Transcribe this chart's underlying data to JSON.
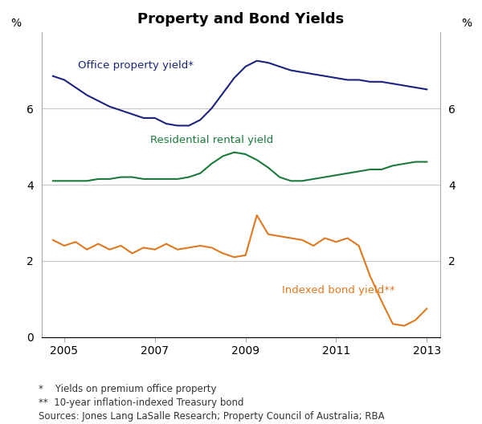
{
  "title": "Property and Bond Yields",
  "ylabel_left": "%",
  "ylabel_right": "%",
  "ylim": [
    0,
    8
  ],
  "yticks_left": [
    0,
    2,
    4,
    6
  ],
  "yticks_right": [
    2,
    4,
    6
  ],
  "xlim": [
    2004.5,
    2013.3
  ],
  "xticks": [
    2005,
    2007,
    2009,
    2011,
    2013
  ],
  "background_color": "#ffffff",
  "grid_color": "#c8c8c8",
  "grid_yticks": [
    0,
    2,
    4,
    6,
    8
  ],
  "footnote1": "*    Yields on premium office property",
  "footnote2": "**  10-year inflation-indexed Treasury bond",
  "footnote3": "Sources: Jones Lang LaSalle Research; Property Council of Australia; RBA",
  "office_label": "Office property yield*",
  "rental_label": "Residential rental yield",
  "bond_label": "Indexed bond yield**",
  "office_color": "#1a237e",
  "rental_color": "#1a7a3c",
  "bond_color": "#e07820",
  "office_x": [
    2004.75,
    2005.0,
    2005.25,
    2005.5,
    2005.75,
    2006.0,
    2006.25,
    2006.5,
    2006.75,
    2007.0,
    2007.25,
    2007.5,
    2007.75,
    2008.0,
    2008.25,
    2008.5,
    2008.75,
    2009.0,
    2009.25,
    2009.5,
    2009.75,
    2010.0,
    2010.25,
    2010.5,
    2010.75,
    2011.0,
    2011.25,
    2011.5,
    2011.75,
    2012.0,
    2012.25,
    2012.5,
    2012.75,
    2013.0
  ],
  "office_y": [
    6.85,
    6.75,
    6.55,
    6.35,
    6.2,
    6.05,
    5.95,
    5.85,
    5.75,
    5.75,
    5.6,
    5.55,
    5.55,
    5.7,
    6.0,
    6.4,
    6.8,
    7.1,
    7.25,
    7.2,
    7.1,
    7.0,
    6.95,
    6.9,
    6.85,
    6.8,
    6.75,
    6.75,
    6.7,
    6.7,
    6.65,
    6.6,
    6.55,
    6.5
  ],
  "rental_x": [
    2004.75,
    2005.0,
    2005.25,
    2005.5,
    2005.75,
    2006.0,
    2006.25,
    2006.5,
    2006.75,
    2007.0,
    2007.25,
    2007.5,
    2007.75,
    2008.0,
    2008.25,
    2008.5,
    2008.75,
    2009.0,
    2009.25,
    2009.5,
    2009.75,
    2010.0,
    2010.25,
    2010.5,
    2010.75,
    2011.0,
    2011.25,
    2011.5,
    2011.75,
    2012.0,
    2012.25,
    2012.5,
    2012.75,
    2013.0
  ],
  "rental_y": [
    4.1,
    4.1,
    4.1,
    4.1,
    4.15,
    4.15,
    4.2,
    4.2,
    4.15,
    4.15,
    4.15,
    4.15,
    4.2,
    4.3,
    4.55,
    4.75,
    4.85,
    4.8,
    4.65,
    4.45,
    4.2,
    4.1,
    4.1,
    4.15,
    4.2,
    4.25,
    4.3,
    4.35,
    4.4,
    4.4,
    4.5,
    4.55,
    4.6,
    4.6
  ],
  "bond_x": [
    2004.75,
    2005.0,
    2005.25,
    2005.5,
    2005.75,
    2006.0,
    2006.25,
    2006.5,
    2006.75,
    2007.0,
    2007.25,
    2007.5,
    2007.75,
    2008.0,
    2008.25,
    2008.5,
    2008.75,
    2009.0,
    2009.25,
    2009.5,
    2009.75,
    2010.0,
    2010.25,
    2010.5,
    2010.75,
    2011.0,
    2011.25,
    2011.5,
    2011.75,
    2012.0,
    2012.25,
    2012.5,
    2012.75,
    2013.0
  ],
  "bond_y": [
    2.55,
    2.4,
    2.5,
    2.3,
    2.45,
    2.3,
    2.4,
    2.2,
    2.35,
    2.3,
    2.45,
    2.3,
    2.35,
    2.4,
    2.35,
    2.2,
    2.1,
    2.15,
    3.2,
    2.7,
    2.65,
    2.6,
    2.55,
    2.4,
    2.6,
    2.5,
    2.6,
    2.4,
    1.6,
    0.95,
    0.35,
    0.3,
    0.45,
    0.75
  ]
}
